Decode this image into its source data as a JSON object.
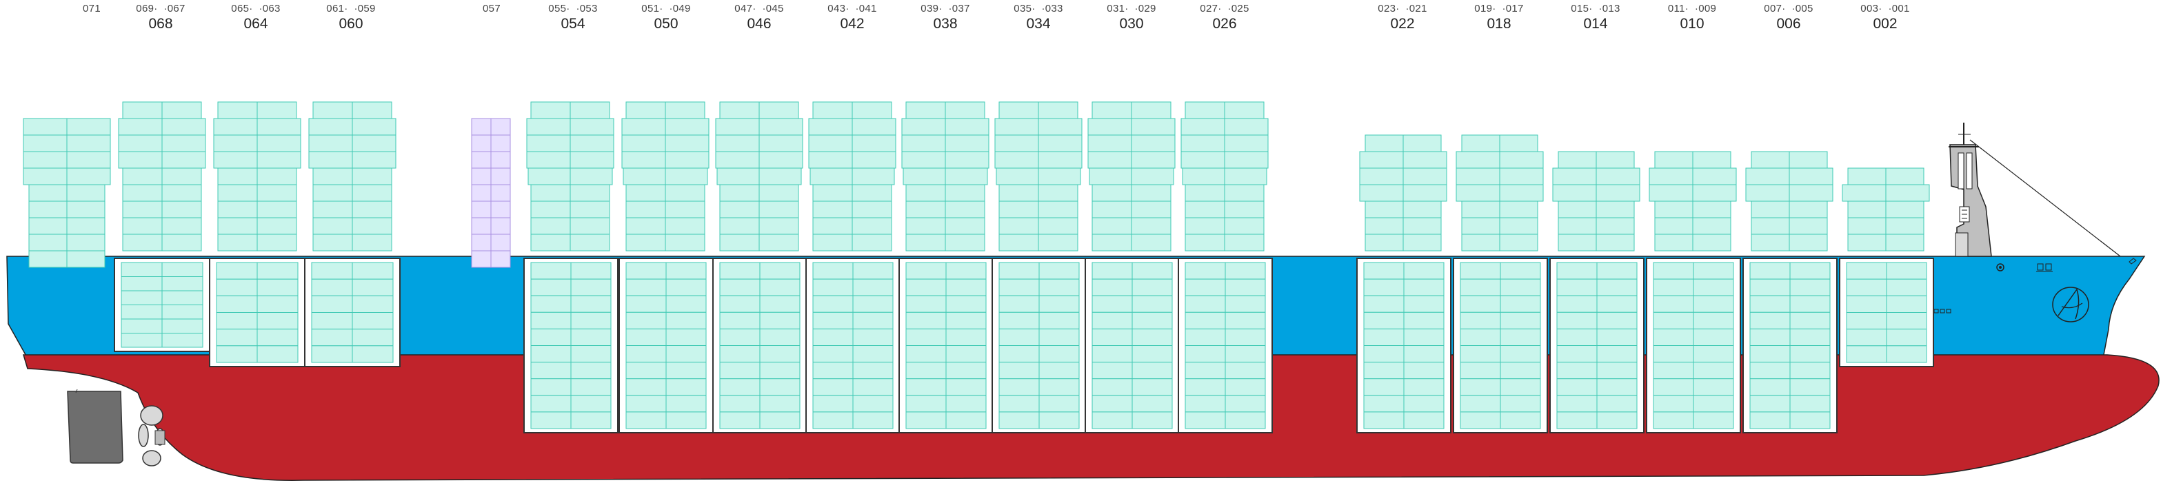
{
  "colors": {
    "hull_red": "#c0232b",
    "hull_blue": "#00a2e0",
    "container_fill": "#c9f5ec",
    "container_stroke": "#3fc9b4",
    "reefer_fill": "#e8e0ff",
    "reefer_stroke": "#a98fe0",
    "hatch_stroke": "#333333",
    "bridge_grey": "#bfbfbf"
  },
  "bays": [
    {
      "id": "068",
      "sub_left": "069",
      "sub_right": "067"
    },
    {
      "id": "064",
      "sub_left": "065",
      "sub_right": "063"
    },
    {
      "id": "060",
      "sub_left": "061",
      "sub_right": "059"
    },
    {
      "id": "054",
      "sub_left": "055",
      "sub_right": "053"
    },
    {
      "id": "050",
      "sub_left": "051",
      "sub_right": "049"
    },
    {
      "id": "046",
      "sub_left": "047",
      "sub_right": "045"
    },
    {
      "id": "042",
      "sub_left": "043",
      "sub_right": "041"
    },
    {
      "id": "038",
      "sub_left": "039",
      "sub_right": "037"
    },
    {
      "id": "034",
      "sub_left": "035",
      "sub_right": "033"
    },
    {
      "id": "030",
      "sub_left": "031",
      "sub_right": "029"
    },
    {
      "id": "026",
      "sub_left": "027",
      "sub_right": "025"
    },
    {
      "id": "022",
      "sub_left": "023",
      "sub_right": "021"
    },
    {
      "id": "018",
      "sub_left": "019",
      "sub_right": "017"
    },
    {
      "id": "014",
      "sub_left": "015",
      "sub_right": "013"
    },
    {
      "id": "010",
      "sub_left": "011",
      "sub_right": "009"
    },
    {
      "id": "006",
      "sub_left": "007",
      "sub_right": "005"
    },
    {
      "id": "002",
      "sub_left": "003",
      "sub_right": "001"
    }
  ],
  "single_labels": {
    "aft": "071",
    "reefer_bay": "057"
  }
}
